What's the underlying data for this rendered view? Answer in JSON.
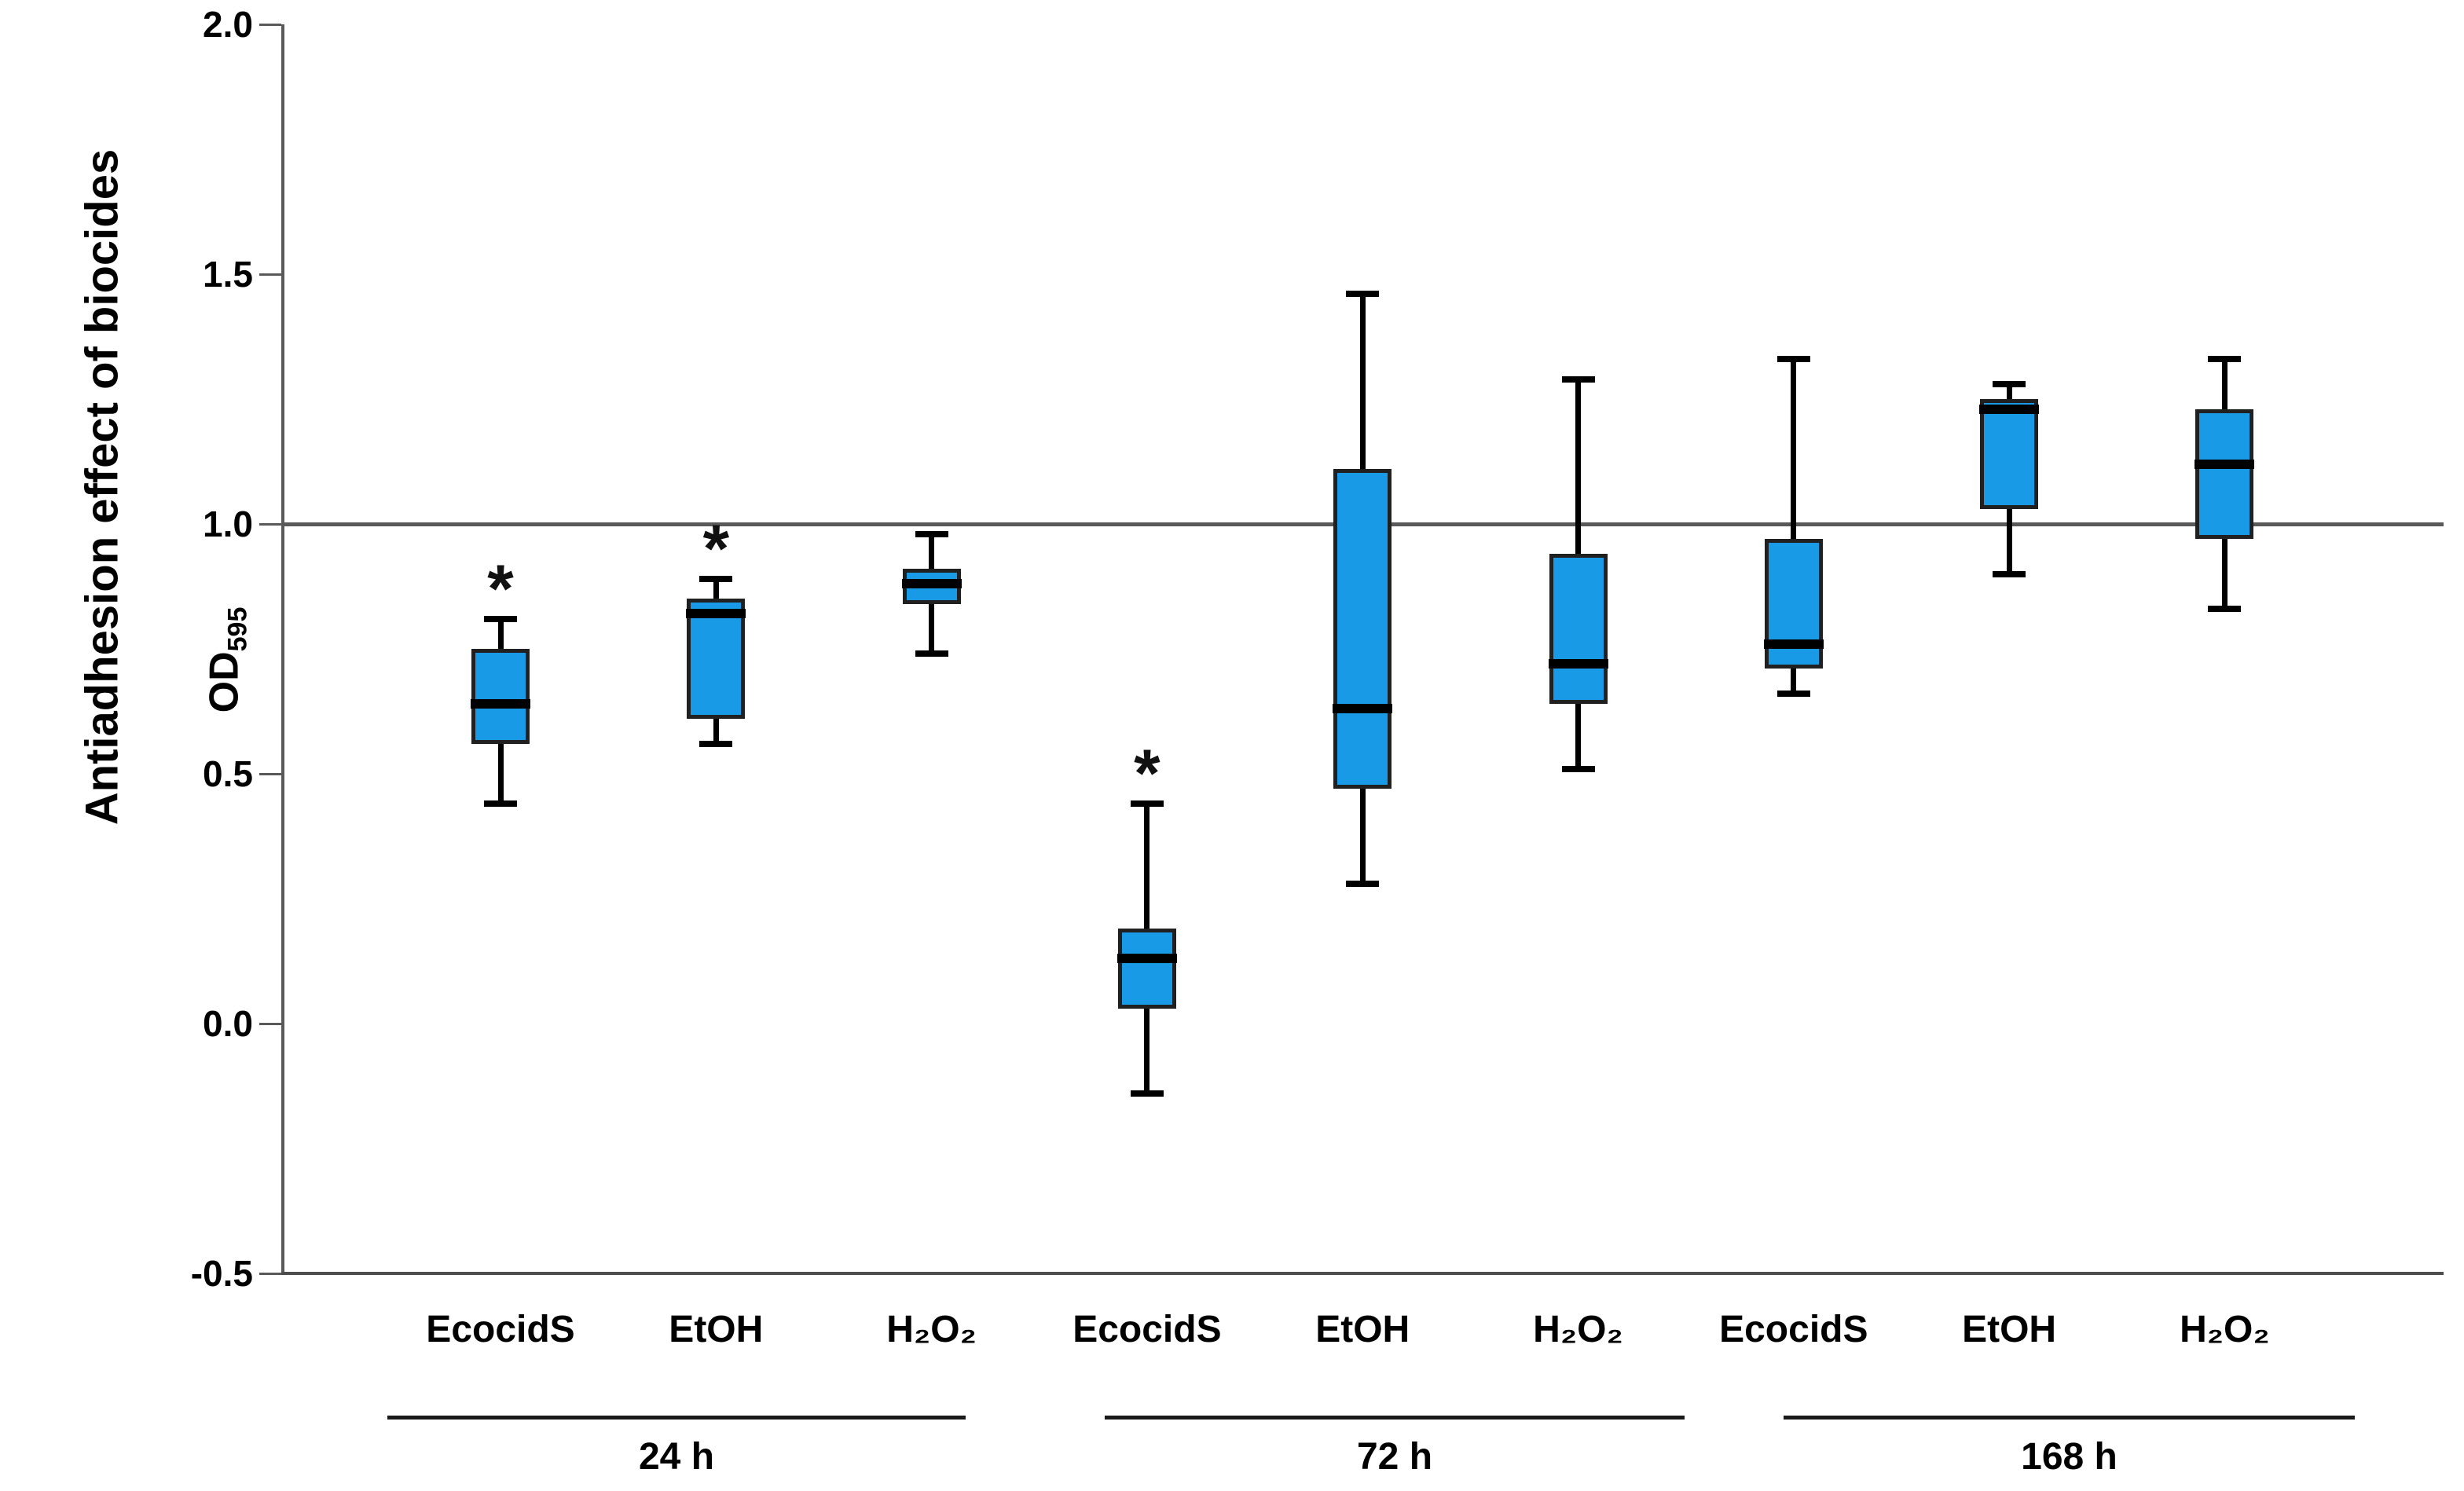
{
  "figure": {
    "y_axis": {
      "title": "Antiadhesion effect of biocides",
      "unit_base": "OD",
      "unit_sub": "595",
      "tick_labels": [
        "2.0",
        "1.5",
        "1.0",
        "0.5",
        "0.0",
        "-0.5"
      ]
    },
    "significance_marker": "*",
    "colors": {
      "box_fill": "#189AE6",
      "box_border": "#202020",
      "median": "#000000",
      "whisker": "#000000",
      "axis": "#4d4d4d",
      "reference_line": "#595959",
      "group_line": "#1a1a1a",
      "text": "#000000"
    }
  },
  "chart_data": {
    "type": "box",
    "title": "",
    "xlabel": "",
    "ylabel": "Antiadhesion effect of biocides (OD595)",
    "ylim": [
      -0.5,
      2.0
    ],
    "y_ticks": [
      2.0,
      1.5,
      1.0,
      0.5,
      0.0,
      -0.5
    ],
    "reference_line": 1.0,
    "grid": false,
    "legend": false,
    "groups": [
      {
        "label": "24 h",
        "boxes": [
          {
            "category": "EcocidS",
            "low": 0.44,
            "q1": 0.56,
            "median": 0.64,
            "q3": 0.75,
            "high": 0.81,
            "significant": true
          },
          {
            "category": "EtOH",
            "low": 0.56,
            "q1": 0.61,
            "median": 0.82,
            "q3": 0.85,
            "high": 0.89,
            "significant": true
          },
          {
            "category": "H₂O₂",
            "low": 0.74,
            "q1": 0.84,
            "median": 0.88,
            "q3": 0.91,
            "high": 0.98,
            "significant": false
          }
        ]
      },
      {
        "label": "72 h",
        "boxes": [
          {
            "category": "EcocidS",
            "low": -0.14,
            "q1": 0.03,
            "median": 0.13,
            "q3": 0.19,
            "high": 0.44,
            "significant": true
          },
          {
            "category": "EtOH",
            "low": 0.28,
            "q1": 0.47,
            "median": 0.63,
            "q3": 1.11,
            "high": 1.46,
            "significant": false
          },
          {
            "category": "H₂O₂",
            "low": 0.51,
            "q1": 0.64,
            "median": 0.72,
            "q3": 0.94,
            "high": 1.29,
            "significant": false
          }
        ]
      },
      {
        "label": "168 h",
        "boxes": [
          {
            "category": "EcocidS",
            "low": 0.66,
            "q1": 0.71,
            "median": 0.76,
            "q3": 0.97,
            "high": 1.33,
            "significant": false
          },
          {
            "category": "EtOH",
            "low": 0.9,
            "q1": 1.03,
            "median": 1.23,
            "q3": 1.25,
            "high": 1.28,
            "significant": false
          },
          {
            "category": "H₂O₂",
            "low": 0.83,
            "q1": 0.97,
            "median": 1.12,
            "q3": 1.23,
            "high": 1.33,
            "significant": false
          }
        ]
      }
    ]
  }
}
